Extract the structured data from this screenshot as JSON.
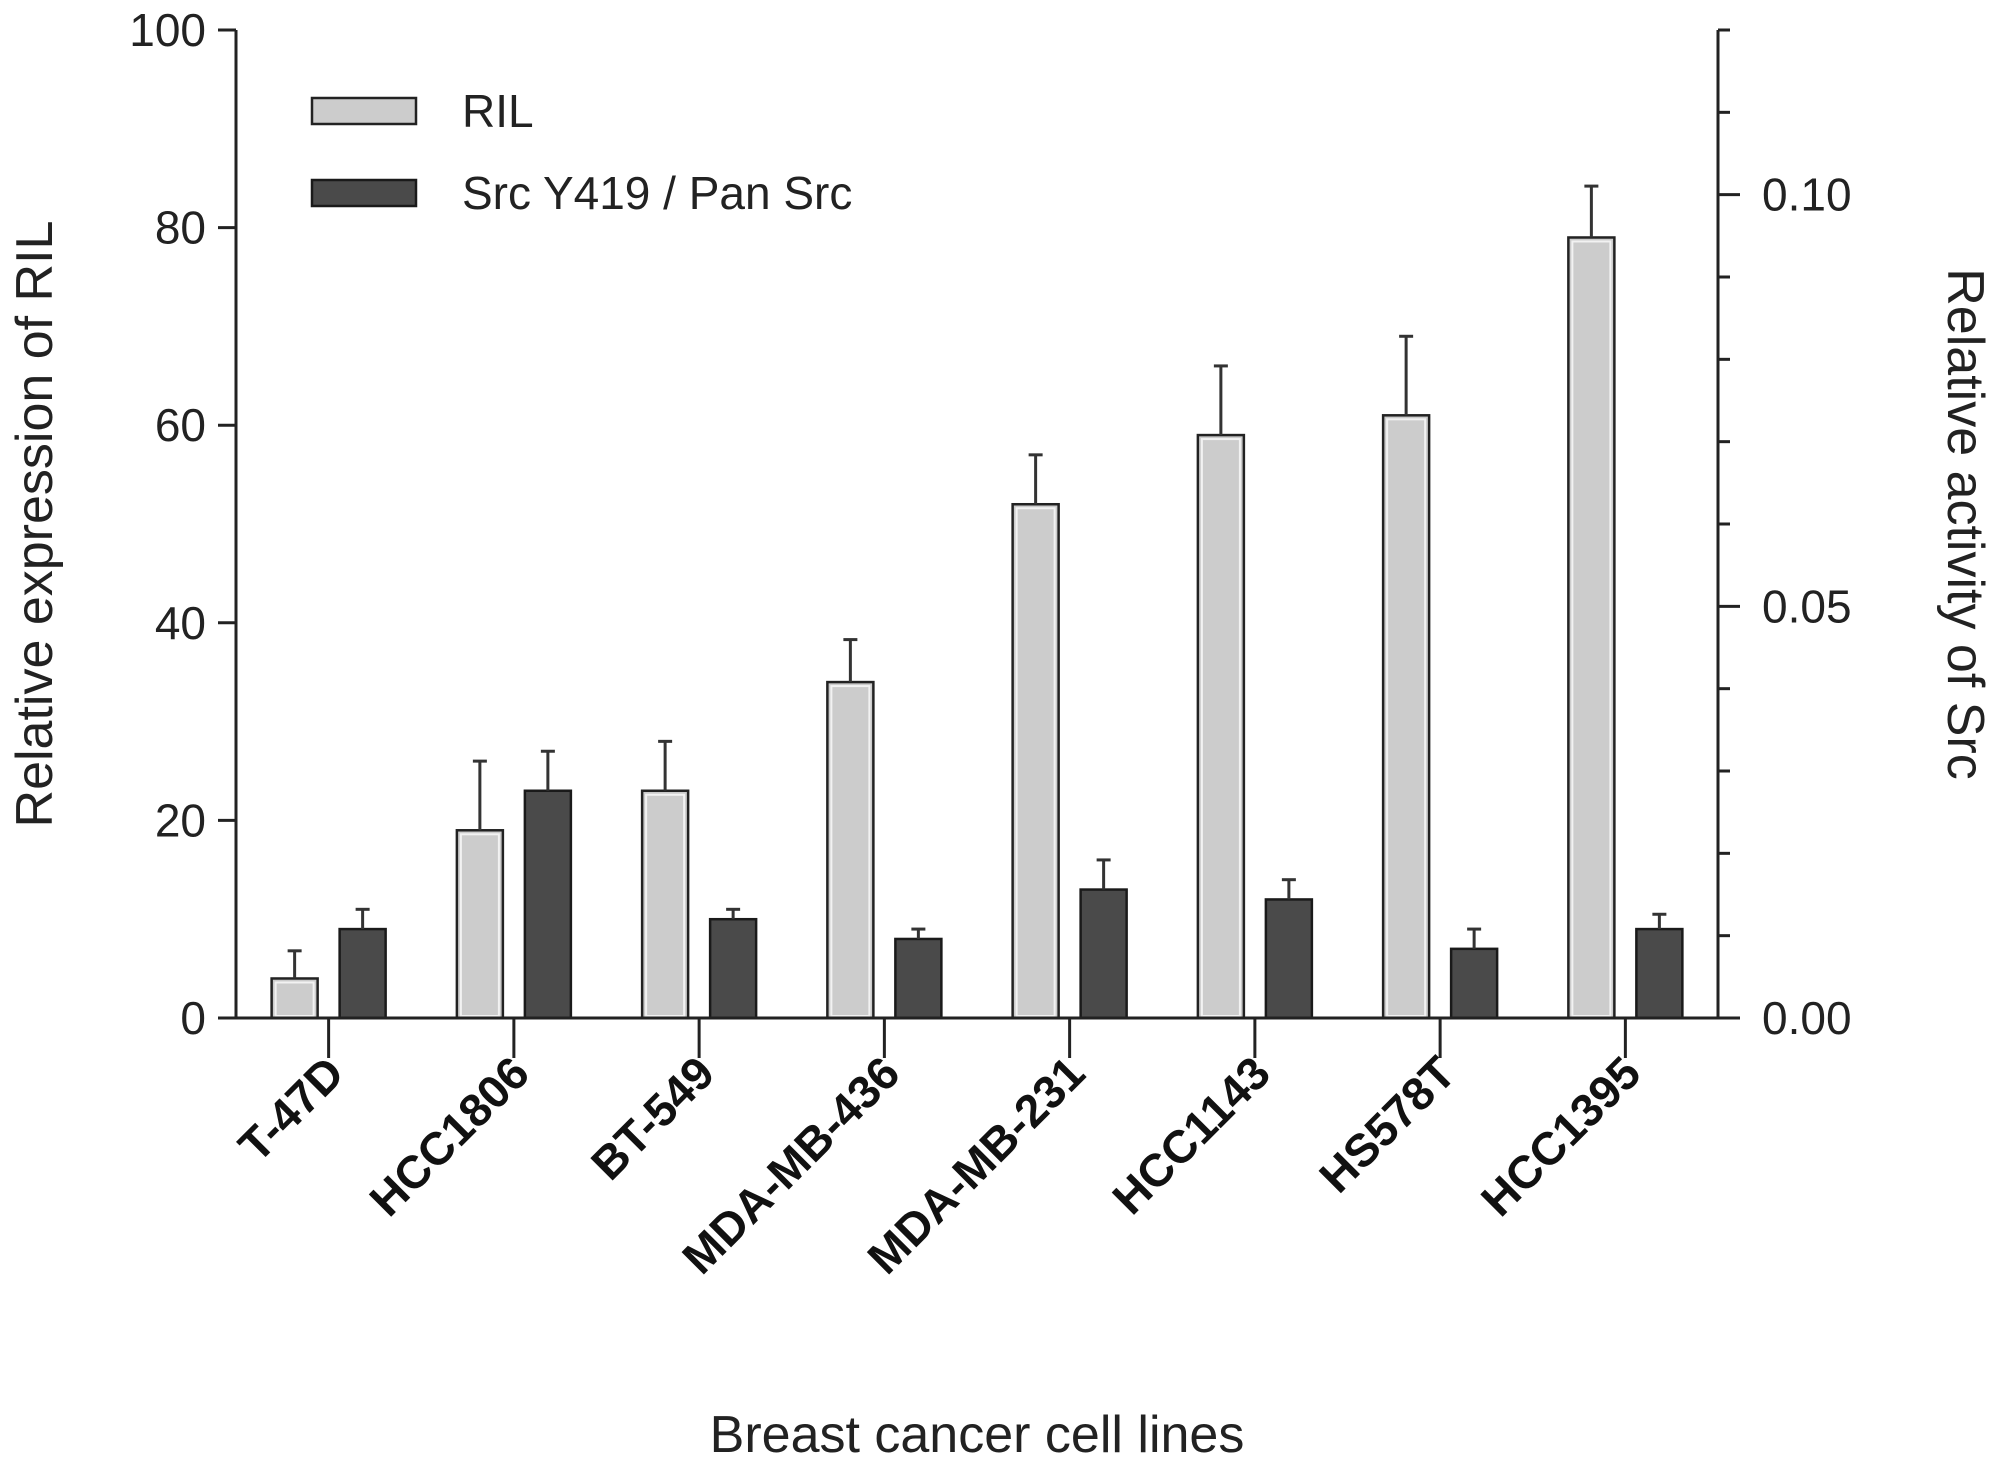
{
  "chart_data": {
    "type": "bar",
    "xlabel": "Breast cancer cell lines",
    "ylabel": "Relative expression of RIL",
    "y2label": "Relative activity of Src",
    "ylim": [
      0,
      100
    ],
    "y2lim": [
      0,
      0.12
    ],
    "yticks": [
      0,
      20,
      40,
      60,
      80,
      100
    ],
    "y2ticks": [
      0,
      0.05,
      0.1
    ],
    "y2ticklabels": [
      "0.00",
      "0.05",
      "0.10"
    ],
    "categories": [
      "T-47D",
      "HCC1806",
      "BT-549",
      "MDA-MB-436",
      "MDA-MB-231",
      "HCC1143",
      "HS578T",
      "HCC1395"
    ],
    "series": [
      {
        "name": "RIL",
        "axis": "left",
        "values": [
          4,
          19,
          23,
          34,
          52,
          59,
          61,
          79
        ],
        "errors": [
          2.8,
          7,
          5,
          4.3,
          5,
          7,
          8,
          5.2
        ],
        "color": "#cccccc"
      },
      {
        "name": "Src Y419 / Pan Src",
        "axis": "right",
        "values": [
          0.0108,
          0.0276,
          0.012,
          0.0096,
          0.0156,
          0.0144,
          0.0084,
          0.0108
        ],
        "errors": [
          0.0024,
          0.0048,
          0.0012,
          0.0012,
          0.0036,
          0.0024,
          0.0024,
          0.0018
        ],
        "color": "#4a4a4a"
      }
    ],
    "legend": "top-left",
    "grid": false
  }
}
